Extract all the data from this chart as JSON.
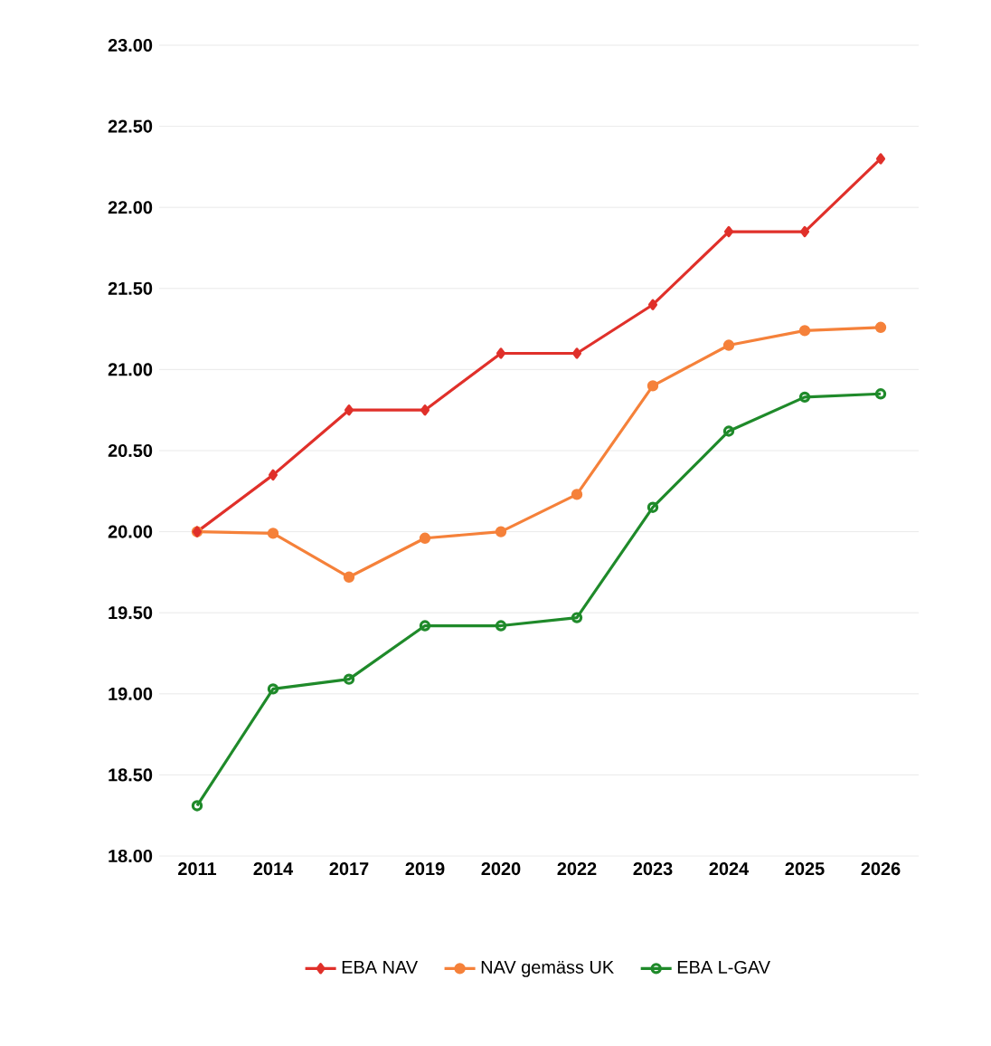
{
  "chart_data": {
    "type": "line",
    "categories": [
      "2011",
      "2014",
      "2017",
      "2019",
      "2020",
      "2022",
      "2023",
      "2024",
      "2025",
      "2026"
    ],
    "series": [
      {
        "name": "EBA NAV",
        "color": "#e0302a",
        "marker": "diamond",
        "values": [
          20.0,
          20.35,
          20.75,
          20.75,
          21.1,
          21.1,
          21.4,
          21.85,
          21.85,
          22.3
        ]
      },
      {
        "name": "NAV gemäss UK",
        "color": "#f5813a",
        "marker": "circle",
        "values": [
          20.0,
          19.99,
          19.72,
          19.96,
          20.0,
          20.23,
          20.9,
          21.15,
          21.24,
          21.26
        ]
      },
      {
        "name": "EBA L-GAV",
        "color": "#1f8a2a",
        "marker": "open circle",
        "values": [
          18.31,
          19.03,
          19.09,
          19.42,
          19.42,
          19.47,
          20.15,
          20.62,
          20.83,
          20.85
        ]
      }
    ],
    "ylim": [
      18,
      23
    ],
    "yticks": [
      {
        "value": 18,
        "label": "18.00"
      },
      {
        "value": 18.5,
        "label": "18.50"
      },
      {
        "value": 19,
        "label": "19.00"
      },
      {
        "value": 19.5,
        "label": "19.50"
      },
      {
        "value": 20,
        "label": "20.00"
      },
      {
        "value": 20.5,
        "label": "20.50"
      },
      {
        "value": 21,
        "label": "21.00"
      },
      {
        "value": 21.5,
        "label": "21.50"
      },
      {
        "value": 22,
        "label": "22.00"
      },
      {
        "value": 22.5,
        "label": "22.50"
      },
      {
        "value": 23,
        "label": "23.00"
      }
    ],
    "grid": "y",
    "legend": "bottom",
    "line_style": "solid"
  }
}
